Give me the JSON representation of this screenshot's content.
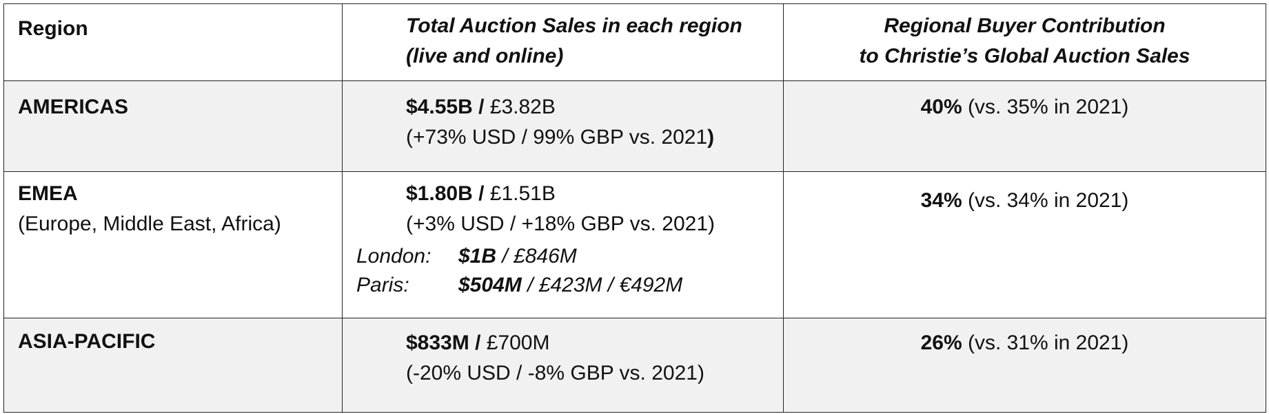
{
  "header": {
    "col1": "Region",
    "col2_line1": "Total Auction Sales in each region",
    "col2_line2": "(live and online)",
    "col3_line1": "Regional Buyer Contribution",
    "col3_line2": "to Christie’s Global Auction Sales"
  },
  "rows": [
    {
      "region": "AMERICAS",
      "sales_usd": "$4.55B /",
      "sales_gbp": " £3.82B",
      "change_pre": "(+73% USD / 99% GBP vs. 2021",
      "change_post": ")",
      "share": "40%",
      "share_note": " (vs. 35% in 2021)"
    },
    {
      "region": "EMEA",
      "region_sub": "(Europe, Middle East, Africa)",
      "sales_usd": "$1.80B /",
      "sales_gbp": " £1.51B",
      "change": "(+3% USD / +18% GBP vs. 2021)",
      "cities": [
        {
          "label": "London:",
          "usd": "$1B",
          "rest": " / £846M"
        },
        {
          "label": "Paris:",
          "usd": "$504M",
          "rest": " / £423M / €492M"
        }
      ],
      "share": "34%",
      "share_note": " (vs. 34% in 2021)"
    },
    {
      "region": "ASIA-PACIFIC",
      "sales_usd": "$833M /",
      "sales_gbp": " £700M",
      "change": "(-20% USD / -8% GBP vs. 2021)",
      "share": "26%",
      "share_note": " (vs. 31% in 2021)"
    }
  ]
}
